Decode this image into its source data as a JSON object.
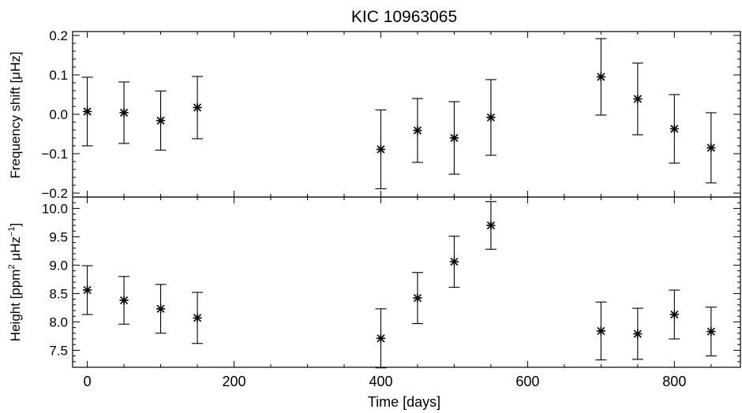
{
  "chart_data": {
    "type": "scatter",
    "title": "KIC 10963065",
    "xlabel": "Time [days]",
    "xlim": [
      -20,
      890
    ],
    "xticks": [
      0,
      200,
      400,
      600,
      800
    ],
    "panels": [
      {
        "id": "freq",
        "ylabel_parts": [
          "Frequency shift [μHz]"
        ],
        "ylim": [
          -0.21,
          0.21
        ],
        "yticks": [
          -0.2,
          -0.1,
          0.0,
          0.1,
          0.2
        ],
        "ytick_labels": [
          "−0.2",
          "−0.1",
          "0.0",
          "0.1",
          "0.2"
        ],
        "points": [
          {
            "x": 0,
            "y": 0.007,
            "err": 0.087
          },
          {
            "x": 50,
            "y": 0.004,
            "err": 0.078
          },
          {
            "x": 100,
            "y": -0.016,
            "err": 0.075
          },
          {
            "x": 150,
            "y": 0.017,
            "err": 0.079
          },
          {
            "x": 400,
            "y": -0.089,
            "err": 0.1
          },
          {
            "x": 450,
            "y": -0.041,
            "err": 0.081
          },
          {
            "x": 500,
            "y": -0.06,
            "err": 0.092
          },
          {
            "x": 550,
            "y": -0.008,
            "err": 0.096
          },
          {
            "x": 700,
            "y": 0.095,
            "err": 0.097
          },
          {
            "x": 750,
            "y": 0.039,
            "err": 0.091
          },
          {
            "x": 800,
            "y": -0.037,
            "err": 0.087
          },
          {
            "x": 850,
            "y": -0.085,
            "err": 0.089
          }
        ]
      },
      {
        "id": "height",
        "ylabel_parts": [
          "Height [ppm",
          "2",
          " μHz",
          "−1",
          "]"
        ],
        "ylim": [
          7.2,
          10.2
        ],
        "yticks": [
          7.5,
          8.0,
          8.5,
          9.0,
          9.5,
          10.0
        ],
        "ytick_labels": [
          "7.5",
          "8.0",
          "8.5",
          "9.0",
          "9.5",
          "10.0"
        ],
        "points": [
          {
            "x": 0,
            "y": 8.56,
            "err": 0.43
          },
          {
            "x": 50,
            "y": 8.38,
            "err": 0.42
          },
          {
            "x": 100,
            "y": 8.23,
            "err": 0.43
          },
          {
            "x": 150,
            "y": 8.07,
            "err": 0.45
          },
          {
            "x": 400,
            "y": 7.71,
            "err": 0.52
          },
          {
            "x": 450,
            "y": 8.42,
            "err": 0.45
          },
          {
            "x": 500,
            "y": 9.06,
            "err": 0.45
          },
          {
            "x": 550,
            "y": 9.7,
            "err": 0.42
          },
          {
            "x": 700,
            "y": 7.84,
            "err": 0.51
          },
          {
            "x": 750,
            "y": 7.79,
            "err": 0.45
          },
          {
            "x": 800,
            "y": 8.13,
            "err": 0.43
          },
          {
            "x": 850,
            "y": 7.83,
            "err": 0.43
          }
        ]
      }
    ]
  }
}
